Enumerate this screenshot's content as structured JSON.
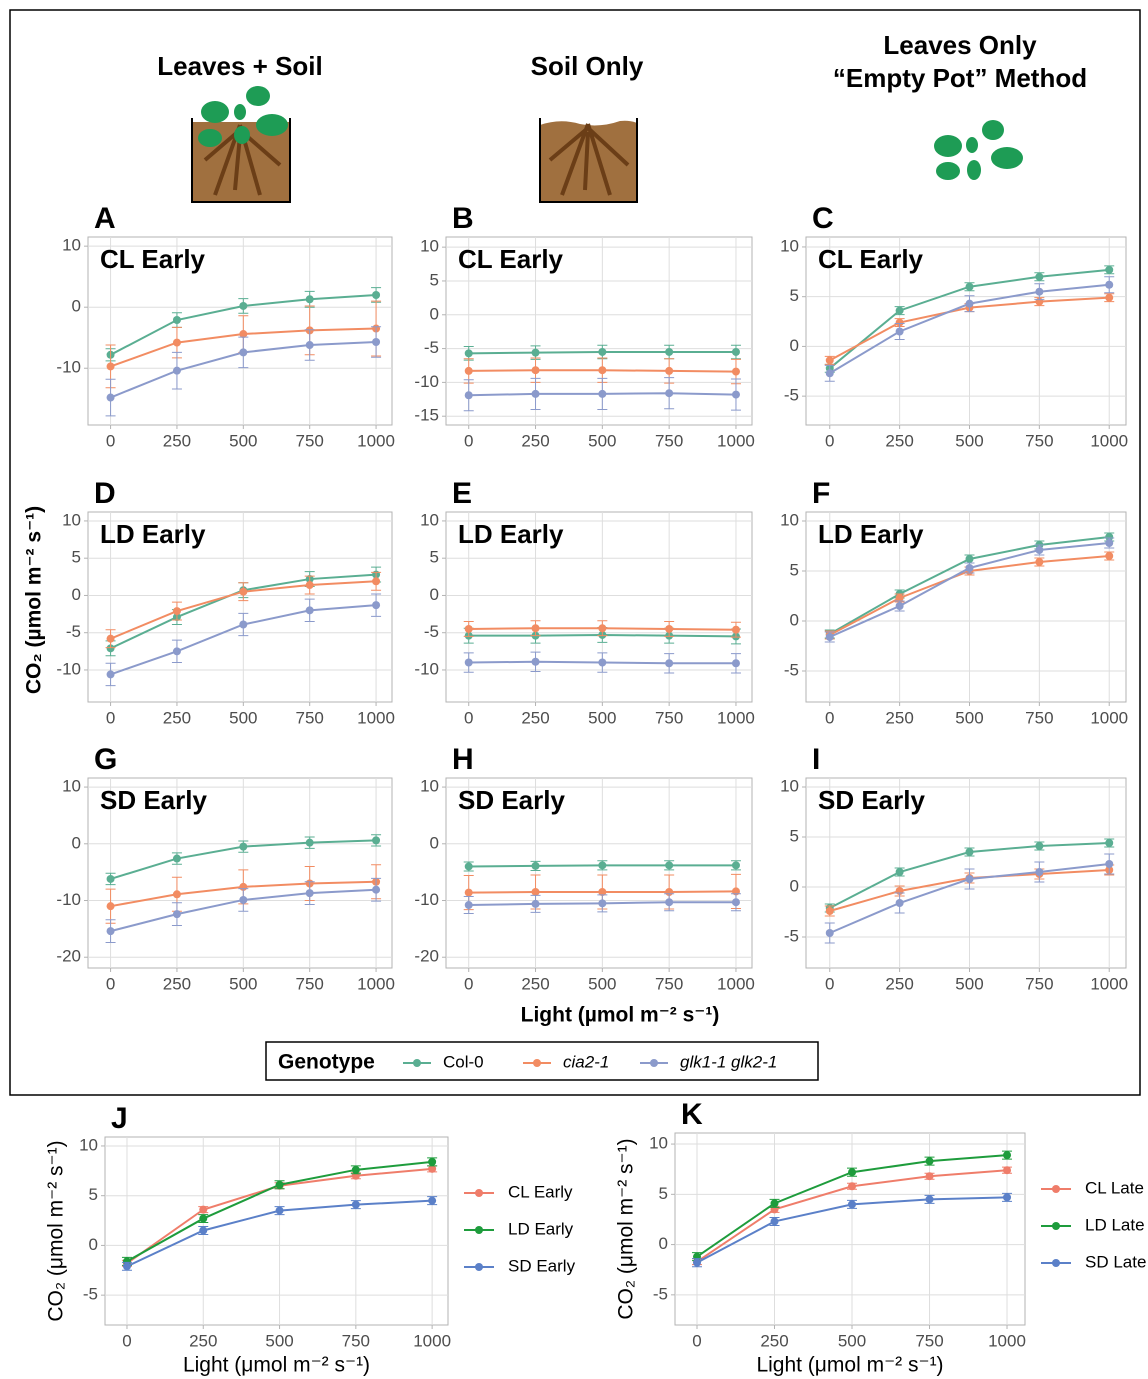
{
  "headers": [
    "Leaves + Soil",
    "Soil Only",
    "Leaves Only",
    "“Empty Pot” Method"
  ],
  "y_label": "CO₂ (µmol m⁻² s⁻¹)",
  "x_label": "Light (µmol m⁻² s⁻¹)",
  "legend_title": "Genotype",
  "chart_data": [
    {
      "type": "line",
      "label": "A",
      "title": "CL Early",
      "x": [
        0,
        250,
        500,
        750,
        1000
      ],
      "xlim": [
        -85,
        1060
      ],
      "xticks": [
        0,
        250,
        500,
        750,
        1000
      ],
      "ylim": [
        -19.3,
        11.5
      ],
      "yticks": [
        -10,
        0,
        10
      ],
      "grid": true,
      "series": [
        {
          "name": "Col-0",
          "color": "#5aae92",
          "values": [
            -7.8,
            -2.1,
            0.2,
            1.3,
            2.0
          ],
          "errors": [
            1.0,
            1.2,
            1.2,
            1.3,
            1.2
          ]
        },
        {
          "name": "cia2-1",
          "color": "#f28c62",
          "values": [
            -9.7,
            -5.8,
            -4.4,
            -3.8,
            -3.5
          ],
          "errors": [
            3.5,
            2.5,
            3.0,
            4.0,
            4.5
          ]
        },
        {
          "name": "glk1-1 glk2-1",
          "color": "#8b9acb",
          "values": [
            -14.8,
            -10.4,
            -7.4,
            -6.2,
            -5.7
          ],
          "errors": [
            3.0,
            3.0,
            2.5,
            2.5,
            2.5
          ]
        }
      ]
    },
    {
      "type": "line",
      "label": "B",
      "title": "CL Early",
      "x": [
        0,
        250,
        500,
        750,
        1000
      ],
      "xlim": [
        -85,
        1060
      ],
      "xticks": [
        0,
        250,
        500,
        750,
        1000
      ],
      "ylim": [
        -16.3,
        11.5
      ],
      "yticks": [
        -15,
        -10,
        -5,
        0,
        5,
        10
      ],
      "grid": true,
      "series": [
        {
          "name": "Col-0",
          "color": "#5aae92",
          "values": [
            -5.7,
            -5.6,
            -5.5,
            -5.5,
            -5.5
          ],
          "errors": [
            1.0,
            1.0,
            1.0,
            1.0,
            1.0
          ]
        },
        {
          "name": "cia2-1",
          "color": "#f28c62",
          "values": [
            -8.3,
            -8.2,
            -8.2,
            -8.3,
            -8.4
          ],
          "errors": [
            1.8,
            1.8,
            1.8,
            1.8,
            1.8
          ]
        },
        {
          "name": "glk1-1 glk2-1",
          "color": "#8b9acb",
          "values": [
            -11.9,
            -11.7,
            -11.7,
            -11.6,
            -11.8
          ],
          "errors": [
            2.3,
            2.3,
            2.3,
            2.3,
            2.3
          ]
        }
      ]
    },
    {
      "type": "line",
      "label": "C",
      "title": "CL Early",
      "x": [
        0,
        250,
        500,
        750,
        1000
      ],
      "xlim": [
        -85,
        1060
      ],
      "xticks": [
        0,
        250,
        500,
        750,
        1000
      ],
      "ylim": [
        -7.9,
        11
      ],
      "yticks": [
        -5,
        0,
        5,
        10
      ],
      "grid": true,
      "series": [
        {
          "name": "Col-0",
          "color": "#5aae92",
          "values": [
            -2.2,
            3.6,
            6.0,
            7.0,
            7.7
          ],
          "errors": [
            0.4,
            0.4,
            0.4,
            0.4,
            0.4
          ]
        },
        {
          "name": "cia2-1",
          "color": "#f28c62",
          "values": [
            -1.4,
            2.4,
            3.9,
            4.5,
            4.9
          ],
          "errors": [
            0.4,
            0.4,
            0.4,
            0.4,
            0.4
          ]
        },
        {
          "name": "glk1-1 glk2-1",
          "color": "#8b9acb",
          "values": [
            -2.7,
            1.5,
            4.3,
            5.5,
            6.2
          ],
          "errors": [
            0.8,
            0.8,
            0.8,
            0.8,
            0.8
          ]
        }
      ]
    },
    {
      "type": "line",
      "label": "D",
      "title": "LD Early",
      "x": [
        0,
        250,
        500,
        750,
        1000
      ],
      "xlim": [
        -85,
        1060
      ],
      "xticks": [
        0,
        250,
        500,
        750,
        1000
      ],
      "ylim": [
        -14.3,
        11.2
      ],
      "yticks": [
        -10,
        -5,
        0,
        5,
        10
      ],
      "grid": true,
      "series": [
        {
          "name": "Col-0",
          "color": "#5aae92",
          "values": [
            -7.1,
            -2.9,
            0.7,
            2.2,
            2.8
          ],
          "errors": [
            1.0,
            1.0,
            1.0,
            1.0,
            1.0
          ]
        },
        {
          "name": "cia2-1",
          "color": "#f28c62",
          "values": [
            -5.8,
            -2.1,
            0.5,
            1.4,
            1.9
          ],
          "errors": [
            1.2,
            1.2,
            1.2,
            1.2,
            1.2
          ]
        },
        {
          "name": "glk1-1 glk2-1",
          "color": "#8b9acb",
          "values": [
            -10.6,
            -7.5,
            -3.9,
            -2.0,
            -1.3
          ],
          "errors": [
            1.5,
            1.5,
            1.5,
            1.5,
            1.5
          ]
        }
      ]
    },
    {
      "type": "line",
      "label": "E",
      "title": "LD Early",
      "x": [
        0,
        250,
        500,
        750,
        1000
      ],
      "xlim": [
        -85,
        1060
      ],
      "xticks": [
        0,
        250,
        500,
        750,
        1000
      ],
      "ylim": [
        -14.3,
        11.2
      ],
      "yticks": [
        -10,
        -5,
        0,
        5,
        10
      ],
      "grid": true,
      "series": [
        {
          "name": "Col-0",
          "color": "#5aae92",
          "values": [
            -5.4,
            -5.4,
            -5.3,
            -5.4,
            -5.5
          ],
          "errors": [
            1.0,
            1.0,
            1.0,
            1.0,
            1.0
          ]
        },
        {
          "name": "cia2-1",
          "color": "#f28c62",
          "values": [
            -4.5,
            -4.4,
            -4.4,
            -4.5,
            -4.6
          ],
          "errors": [
            1.0,
            1.0,
            1.0,
            1.0,
            1.0
          ]
        },
        {
          "name": "glk1-1 glk2-1",
          "color": "#8b9acb",
          "values": [
            -9.0,
            -8.9,
            -9.0,
            -9.1,
            -9.1
          ],
          "errors": [
            1.3,
            1.3,
            1.3,
            1.3,
            1.3
          ]
        }
      ]
    },
    {
      "type": "line",
      "label": "F",
      "title": "LD Early",
      "x": [
        0,
        250,
        500,
        750,
        1000
      ],
      "xlim": [
        -85,
        1060
      ],
      "xticks": [
        0,
        250,
        500,
        750,
        1000
      ],
      "ylim": [
        -8.1,
        10.9
      ],
      "yticks": [
        -5,
        0,
        5,
        10
      ],
      "grid": true,
      "series": [
        {
          "name": "Col-0",
          "color": "#5aae92",
          "values": [
            -1.3,
            2.7,
            6.2,
            7.6,
            8.4
          ],
          "errors": [
            0.4,
            0.4,
            0.4,
            0.4,
            0.4
          ]
        },
        {
          "name": "cia2-1",
          "color": "#f28c62",
          "values": [
            -1.4,
            2.3,
            5.0,
            5.9,
            6.5
          ],
          "errors": [
            0.4,
            0.4,
            0.4,
            0.4,
            0.4
          ]
        },
        {
          "name": "glk1-1 glk2-1",
          "color": "#8b9acb",
          "values": [
            -1.6,
            1.5,
            5.3,
            7.1,
            7.8
          ],
          "errors": [
            0.5,
            0.5,
            0.5,
            0.5,
            0.5
          ]
        }
      ]
    },
    {
      "type": "line",
      "label": "G",
      "title": "SD Early",
      "x": [
        0,
        250,
        500,
        750,
        1000
      ],
      "xlim": [
        -85,
        1060
      ],
      "xticks": [
        0,
        250,
        500,
        750,
        1000
      ],
      "ylim": [
        -21.9,
        11.6
      ],
      "yticks": [
        -20,
        -10,
        0,
        10
      ],
      "grid": true,
      "series": [
        {
          "name": "Col-0",
          "color": "#5aae92",
          "values": [
            -6.2,
            -2.6,
            -0.5,
            0.2,
            0.6
          ],
          "errors": [
            1.0,
            1.0,
            1.0,
            1.0,
            1.0
          ]
        },
        {
          "name": "cia2-1",
          "color": "#f28c62",
          "values": [
            -11.0,
            -8.9,
            -7.6,
            -7.0,
            -6.7
          ],
          "errors": [
            3.0,
            3.0,
            3.0,
            3.0,
            3.0
          ]
        },
        {
          "name": "glk1-1 glk2-1",
          "color": "#8b9acb",
          "values": [
            -15.4,
            -12.4,
            -9.9,
            -8.7,
            -8.1
          ],
          "errors": [
            2.0,
            2.0,
            2.0,
            2.0,
            2.0
          ]
        }
      ]
    },
    {
      "type": "line",
      "label": "H",
      "title": "SD Early",
      "x": [
        0,
        250,
        500,
        750,
        1000
      ],
      "xlim": [
        -85,
        1060
      ],
      "xticks": [
        0,
        250,
        500,
        750,
        1000
      ],
      "ylim": [
        -21.9,
        11.6
      ],
      "yticks": [
        -20,
        -10,
        0,
        10
      ],
      "grid": true,
      "series": [
        {
          "name": "Col-0",
          "color": "#5aae92",
          "values": [
            -4.0,
            -3.9,
            -3.8,
            -3.8,
            -3.8
          ],
          "errors": [
            0.8,
            0.8,
            0.8,
            0.8,
            0.8
          ]
        },
        {
          "name": "cia2-1",
          "color": "#f28c62",
          "values": [
            -8.6,
            -8.5,
            -8.5,
            -8.5,
            -8.4
          ],
          "errors": [
            3.0,
            3.0,
            3.0,
            3.0,
            3.0
          ]
        },
        {
          "name": "glk1-1 glk2-1",
          "color": "#8b9acb",
          "values": [
            -10.8,
            -10.6,
            -10.5,
            -10.3,
            -10.3
          ],
          "errors": [
            1.5,
            1.5,
            1.5,
            1.5,
            1.5
          ]
        }
      ]
    },
    {
      "type": "line",
      "label": "I",
      "title": "SD Early",
      "x": [
        0,
        250,
        500,
        750,
        1000
      ],
      "xlim": [
        -85,
        1060
      ],
      "xticks": [
        0,
        250,
        500,
        750,
        1000
      ],
      "ylim": [
        -8.1,
        10.9
      ],
      "yticks": [
        -5,
        0,
        5,
        10
      ],
      "grid": true,
      "series": [
        {
          "name": "Col-0",
          "color": "#5aae92",
          "values": [
            -2.1,
            1.5,
            3.5,
            4.1,
            4.4
          ],
          "errors": [
            0.4,
            0.4,
            0.4,
            0.4,
            0.4
          ]
        },
        {
          "name": "cia2-1",
          "color": "#f28c62",
          "values": [
            -2.4,
            -0.4,
            0.9,
            1.3,
            1.7
          ],
          "errors": [
            0.5,
            0.5,
            0.5,
            0.5,
            0.5
          ]
        },
        {
          "name": "glk1-1 glk2-1",
          "color": "#8b9acb",
          "values": [
            -4.6,
            -1.6,
            0.8,
            1.5,
            2.3
          ],
          "errors": [
            1.0,
            1.0,
            1.0,
            1.0,
            1.0
          ]
        }
      ]
    },
    {
      "type": "line",
      "label": "J",
      "x_label": "Light (μmol m⁻² s⁻¹)",
      "y_label": "CO₂ (μmol m⁻² s⁻¹)",
      "x": [
        0,
        250,
        500,
        750,
        1000
      ],
      "xlim": [
        -72,
        1052
      ],
      "xticks": [
        0,
        250,
        500,
        750,
        1000
      ],
      "ylim": [
        -8.0,
        10.9
      ],
      "yticks": [
        -5,
        0,
        5,
        10
      ],
      "grid": true,
      "legend": "right",
      "series": [
        {
          "name": "CL Early",
          "color": "#ef7d6a",
          "values": [
            -1.8,
            3.6,
            6.0,
            7.0,
            7.7
          ],
          "errors": [
            0.3,
            0.3,
            0.3,
            0.3,
            0.3
          ]
        },
        {
          "name": "LD Early",
          "color": "#1e9c3c",
          "values": [
            -1.6,
            2.7,
            6.1,
            7.6,
            8.4
          ],
          "errors": [
            0.4,
            0.4,
            0.4,
            0.4,
            0.4
          ]
        },
        {
          "name": "SD Early",
          "color": "#5b80c8",
          "values": [
            -2.1,
            1.5,
            3.5,
            4.1,
            4.5
          ],
          "errors": [
            0.4,
            0.4,
            0.4,
            0.4,
            0.4
          ]
        }
      ]
    },
    {
      "type": "line",
      "label": "K",
      "x_label": "Light (μmol m⁻² s⁻¹)",
      "y_label": "CO₂ (μmol m⁻² s⁻¹)",
      "x": [
        0,
        250,
        500,
        750,
        1000
      ],
      "xlim": [
        -71,
        1058
      ],
      "xticks": [
        0,
        250,
        500,
        750,
        1000
      ],
      "ylim": [
        -8.0,
        11.1
      ],
      "yticks": [
        -5,
        0,
        5,
        10
      ],
      "grid": true,
      "legend": "right",
      "series": [
        {
          "name": "CL Late",
          "color": "#ef7d6a",
          "values": [
            -1.7,
            3.5,
            5.8,
            6.8,
            7.4
          ],
          "errors": [
            0.3,
            0.3,
            0.3,
            0.3,
            0.3
          ]
        },
        {
          "name": "LD Late",
          "color": "#1e9c3c",
          "values": [
            -1.2,
            4.1,
            7.2,
            8.3,
            8.9
          ],
          "errors": [
            0.4,
            0.4,
            0.4,
            0.4,
            0.4
          ]
        },
        {
          "name": "SD Late",
          "color": "#5b80c8",
          "values": [
            -1.8,
            2.3,
            4.0,
            4.5,
            4.7
          ],
          "errors": [
            0.4,
            0.4,
            0.4,
            0.4,
            0.4
          ]
        }
      ]
    }
  ]
}
